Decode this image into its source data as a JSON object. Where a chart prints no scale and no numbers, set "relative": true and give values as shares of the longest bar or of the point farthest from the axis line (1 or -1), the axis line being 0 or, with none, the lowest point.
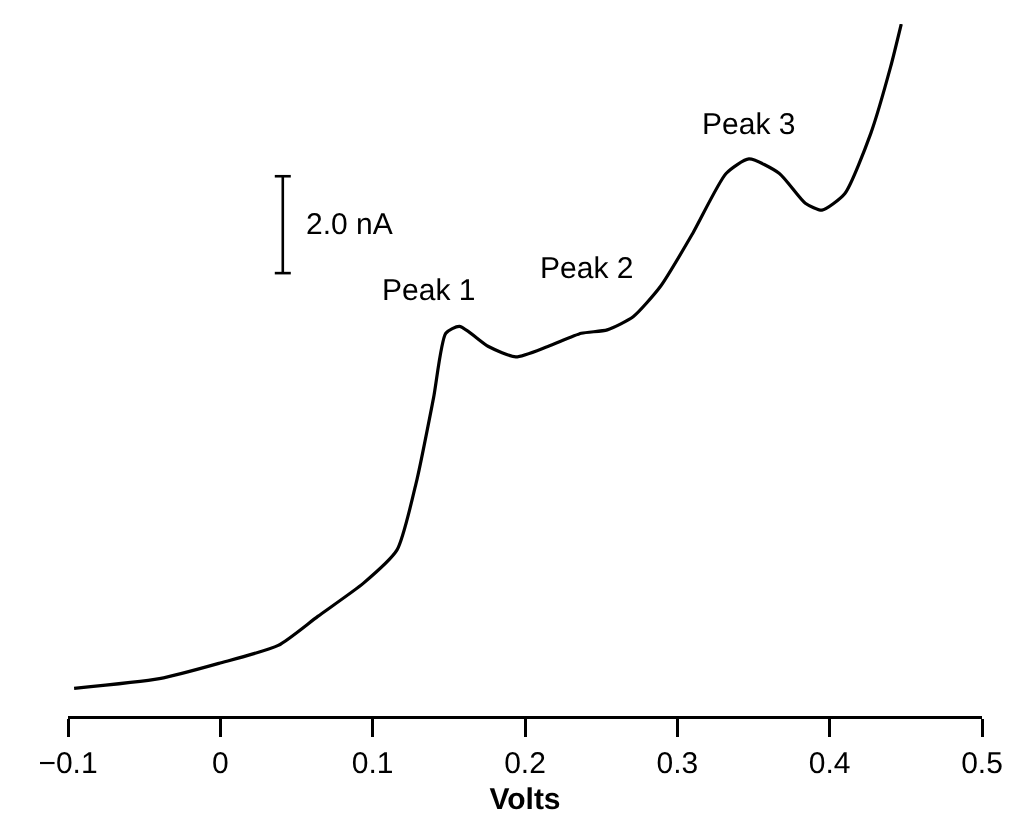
{
  "chart_data": {
    "type": "line",
    "relative": true,
    "xlabel": "Volts",
    "xlim": [
      -0.1,
      0.5
    ],
    "xticks": [
      {
        "value": -0.1,
        "label": "−0.1"
      },
      0,
      0.1,
      0.2,
      0.3,
      0.4,
      0.5
    ],
    "marker": "none",
    "line_style": "solid",
    "series": [
      {
        "color": "#000000",
        "x": [
          -0.096,
          -0.04,
          -0.001,
          0.038,
          0.064,
          0.094,
          0.116,
          0.129,
          0.14,
          0.148,
          0.157,
          0.176,
          0.194,
          0.215,
          0.237,
          0.254,
          0.271,
          0.289,
          0.31,
          0.332,
          0.347,
          0.367,
          0.384,
          0.395,
          0.41,
          0.427,
          0.44,
          0.447
        ],
        "values": [
          0.04,
          0.054,
          0.076,
          0.102,
          0.144,
          0.192,
          0.24,
          0.341,
          0.46,
          0.553,
          0.563,
          0.534,
          0.519,
          0.534,
          0.553,
          0.558,
          0.577,
          0.621,
          0.697,
          0.784,
          0.805,
          0.784,
          0.741,
          0.731,
          0.755,
          0.842,
          0.938,
          1.0
        ]
      }
    ],
    "annotations": [
      "2.0 nA",
      {
        "text": "Peak 1",
        "x": 0.157,
        "y": 0.563
      },
      {
        "text": "Peak 2",
        "x": 0.254,
        "y": 0.558
      },
      {
        "text": "Peak 3",
        "x": 0.347,
        "y": 0.805
      }
    ]
  }
}
